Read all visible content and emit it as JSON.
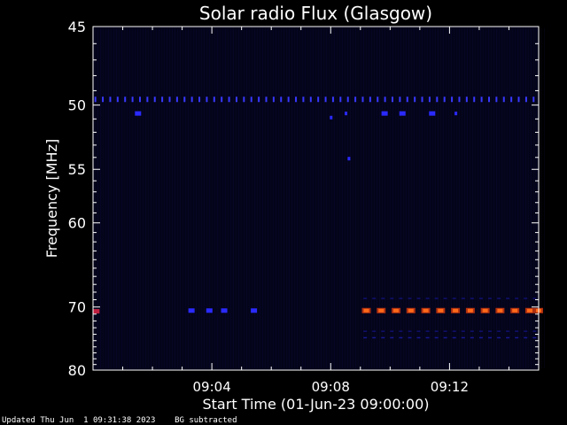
{
  "chart_data": {
    "type": "heatmap",
    "title": "Solar radio Flux (Glasgow)",
    "xlabel": "Start Time (01-Jun-23 09:00:00)",
    "ylabel": "Frequency [MHz]",
    "x_ticks": [
      {
        "label": "09:04",
        "minutes": 4
      },
      {
        "label": "09:08",
        "minutes": 8
      },
      {
        "label": "09:12",
        "minutes": 12
      }
    ],
    "x_range_minutes": [
      0,
      15
    ],
    "y_ticks": [
      45,
      50,
      55,
      60,
      70,
      80
    ],
    "y_scale": "reciprocal",
    "y_range_mhz": [
      45,
      80
    ],
    "background_color": "#04041a",
    "features": [
      {
        "name": "49.6 MHz line",
        "type": "dots",
        "freq": 49.6,
        "t_start": 0.0,
        "t_end": 15.0,
        "color": "#3838ff"
      },
      {
        "freq": 50.6,
        "type": "blob",
        "times": [
          1.5
        ],
        "color": "#2a2aff"
      },
      {
        "freq": 50.6,
        "type": "blob",
        "times": [
          9.8,
          10.4,
          11.4
        ],
        "color": "#2a2aff"
      },
      {
        "freq": 50.6,
        "type": "dot",
        "times": [
          12.2
        ],
        "color": "#2a2aff"
      },
      {
        "freq": 50.9,
        "type": "dot",
        "times": [
          8.0
        ],
        "color": "#2a2aff"
      },
      {
        "freq": 50.6,
        "type": "dot",
        "times": [
          8.5
        ],
        "color": "#2a2aff"
      },
      {
        "freq": 54.1,
        "type": "dot",
        "times": [
          8.6
        ],
        "color": "#2a2aff"
      },
      {
        "freq": 70.5,
        "type": "blob",
        "times": [
          3.3,
          3.9,
          4.4,
          5.4
        ],
        "color": "#2a2aff"
      },
      {
        "freq": 70.6,
        "type": "blob",
        "times": [
          0.1
        ],
        "color": "#c02040"
      },
      {
        "freq": 70.5,
        "type": "burst",
        "times": [
          9.2,
          9.7,
          10.2,
          10.7,
          11.2,
          11.7,
          12.2,
          12.7,
          13.2,
          13.7,
          14.2,
          14.7,
          15.0
        ],
        "color": "#ff6a1a"
      },
      {
        "freq": 68.8,
        "type": "dashes",
        "t_start": 9.0,
        "t_end": 15.0,
        "color": "#101070"
      },
      {
        "freq": 73.5,
        "type": "dashes",
        "t_start": 9.0,
        "t_end": 15.0,
        "color": "#101070"
      },
      {
        "freq": 74.5,
        "type": "dashes",
        "t_start": 9.0,
        "t_end": 15.0,
        "color": "#181890"
      }
    ]
  },
  "footer": {
    "updated": "Updated Thu Jun  1 09:31:38 2023",
    "note": "BG subtracted"
  }
}
